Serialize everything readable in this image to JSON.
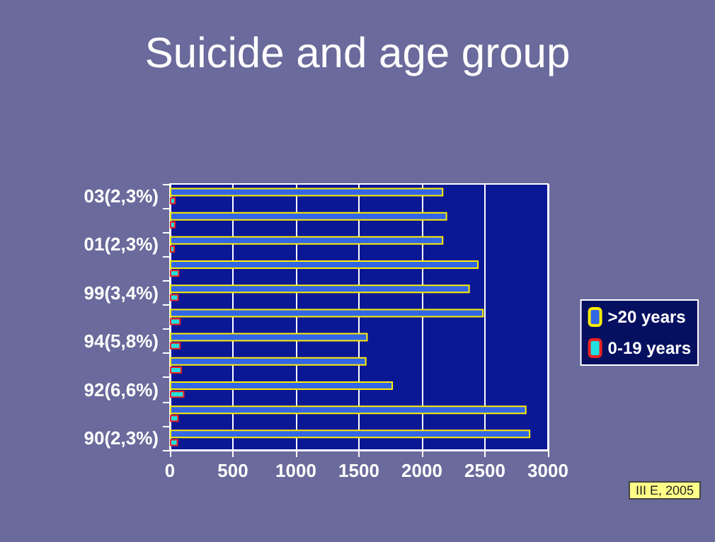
{
  "chart_data": {
    "type": "bar",
    "orientation": "horizontal",
    "title": "Suicide and age group",
    "categories": [
      "03(2,3%)",
      null,
      "01(2,3%)",
      null,
      "99(3,4%)",
      null,
      "94(5,8%)",
      null,
      "92(6,6%)",
      null,
      "90(2,3%)"
    ],
    "series": [
      {
        "name": ">20 years",
        "color": "#3366e6",
        "values": [
          2170,
          2200,
          2170,
          2450,
          2380,
          2490,
          1570,
          1560,
          1770,
          2830,
          2860
        ]
      },
      {
        "name": "0-19 years",
        "color": "#22e0e0",
        "values": [
          45,
          45,
          40,
          75,
          70,
          85,
          85,
          95,
          115,
          70,
          65
        ]
      }
    ],
    "xlim": [
      0,
      3000
    ],
    "xticks": [
      0,
      500,
      1000,
      1500,
      2000,
      2500,
      3000
    ],
    "grid": "x",
    "legend": "right",
    "annotations": [
      "III E, 2005"
    ]
  }
}
